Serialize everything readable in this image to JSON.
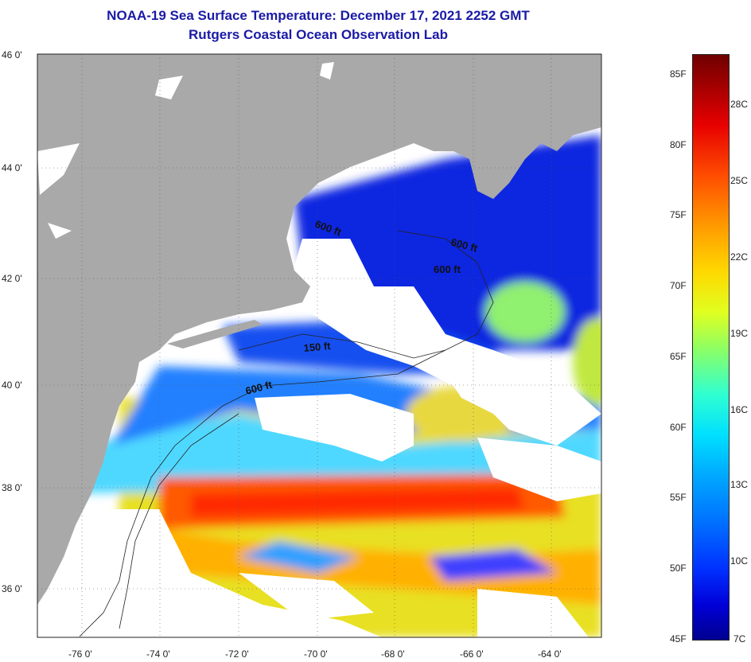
{
  "title_line1": "NOAA-19 Sea Surface Temperature:  December 17, 2021 2252 GMT",
  "title_line2": "Rutgers Coastal Ocean Observation Lab",
  "lat_labels": [
    "46 0'",
    "44 0'",
    "42 0'",
    "40 0'",
    "38 0'",
    "36 0'"
  ],
  "lon_labels": [
    "-76 0'",
    "-74 0'",
    "-72 0'",
    "-70 0'",
    "-68 0'",
    "-66 0'",
    "-64 0'"
  ],
  "contour_labels": [
    "600 ft",
    "600 ft",
    "600 ft",
    "150 ft",
    "600 ft"
  ],
  "colorbar_fahrenheit": [
    "85F",
    "80F",
    "75F",
    "70F",
    "65F",
    "60F",
    "55F",
    "50F",
    "45F"
  ],
  "colorbar_celsius": [
    "28C",
    "25C",
    "22C",
    "19C",
    "16C",
    "13C",
    "10C",
    "7C"
  ],
  "colors": {
    "land": "#a9a9a9",
    "cloud": "#ffffff",
    "title": "#1a1aa6"
  }
}
